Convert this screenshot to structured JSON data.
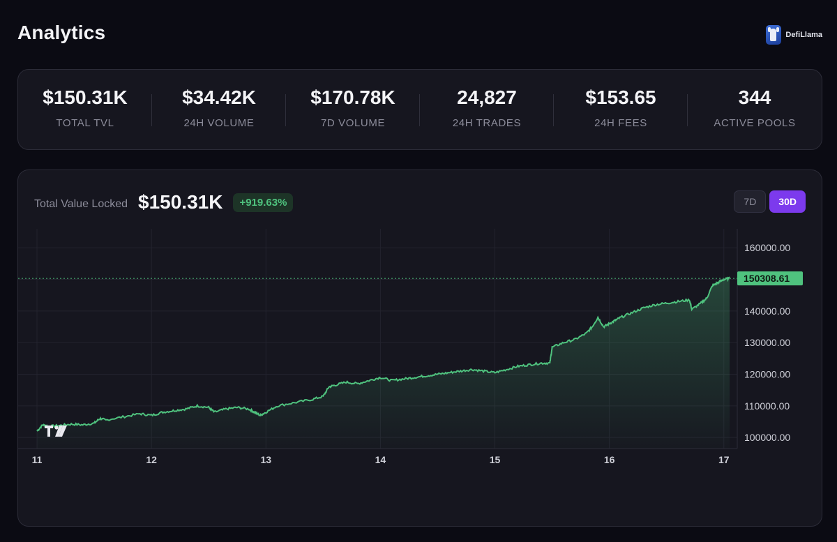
{
  "page": {
    "title": "Analytics"
  },
  "brand": {
    "name": "DefiLlama",
    "icon": "llama-logo-icon"
  },
  "stats": [
    {
      "value": "$150.31K",
      "label": "TOTAL TVL"
    },
    {
      "value": "$34.42K",
      "label": "24H VOLUME"
    },
    {
      "value": "$170.78K",
      "label": "7D VOLUME"
    },
    {
      "value": "24,827",
      "label": "24H TRADES"
    },
    {
      "value": "$153.65",
      "label": "24H FEES"
    },
    {
      "value": "344",
      "label": "ACTIVE POOLS"
    }
  ],
  "tvl_panel": {
    "label": "Total Value Locked",
    "value": "$150.31K",
    "change": "+919.63%",
    "ranges": [
      {
        "label": "7D",
        "active": false
      },
      {
        "label": "30D",
        "active": true
      }
    ]
  },
  "colors": {
    "accent": "#7c3aed",
    "line": "#4fc27e",
    "change_bg": "#1d3427"
  },
  "chart_data": {
    "type": "area",
    "x_tick_labels": [
      "11",
      "12",
      "13",
      "14",
      "15",
      "16",
      "17"
    ],
    "y_tick_labels": [
      "160000.00",
      "150000.00",
      "140000.00",
      "130000.00",
      "120000.00",
      "110000.00",
      "100000.00"
    ],
    "y_ticks": [
      160000,
      150000,
      140000,
      130000,
      120000,
      110000,
      100000
    ],
    "ylim": [
      96500,
      166000
    ],
    "xlim": [
      11.0,
      17.05
    ],
    "last_value_label": "150308.61",
    "last_value": 150308.61,
    "grid": true,
    "series": [
      {
        "x": [
          11.0,
          11.05,
          11.1,
          11.2,
          11.3,
          11.4,
          11.5,
          11.55,
          11.6,
          11.75,
          11.9,
          12.0,
          12.1,
          12.2,
          12.3,
          12.4,
          12.5,
          12.55,
          12.65,
          12.75,
          12.85,
          12.9,
          12.95,
          13.0,
          13.1,
          13.25,
          13.4,
          13.5,
          13.55,
          13.6,
          13.7,
          13.8,
          13.9,
          14.0,
          14.1,
          14.2,
          14.3,
          14.4,
          14.5,
          14.6,
          14.7,
          14.8,
          14.9,
          15.0,
          15.1,
          15.2,
          15.3,
          15.4,
          15.48,
          15.5,
          15.6,
          15.7,
          15.8,
          15.85,
          15.9,
          15.95,
          16.0,
          16.05,
          16.1,
          16.2,
          16.3,
          16.4,
          16.5,
          16.6,
          16.7,
          16.72,
          16.8,
          16.85,
          16.9,
          16.95,
          17.0,
          17.05
        ],
        "y": [
          102000,
          104000,
          103500,
          103800,
          104200,
          104000,
          104500,
          106000,
          105500,
          106500,
          107500,
          107000,
          108000,
          108500,
          109000,
          110000,
          109500,
          108000,
          109000,
          109500,
          109000,
          108000,
          107000,
          108000,
          110000,
          111000,
          112000,
          113000,
          116000,
          116500,
          117500,
          117000,
          118000,
          119000,
          118000,
          118500,
          119000,
          119500,
          120000,
          120500,
          121000,
          121500,
          121000,
          120500,
          121500,
          122500,
          123000,
          123500,
          123500,
          128500,
          130000,
          131000,
          133000,
          135000,
          138000,
          135000,
          136000,
          137000,
          138000,
          139500,
          141000,
          142000,
          142500,
          143000,
          143500,
          140500,
          142500,
          144000,
          148000,
          149000,
          150000,
          150308.61
        ]
      }
    ]
  }
}
